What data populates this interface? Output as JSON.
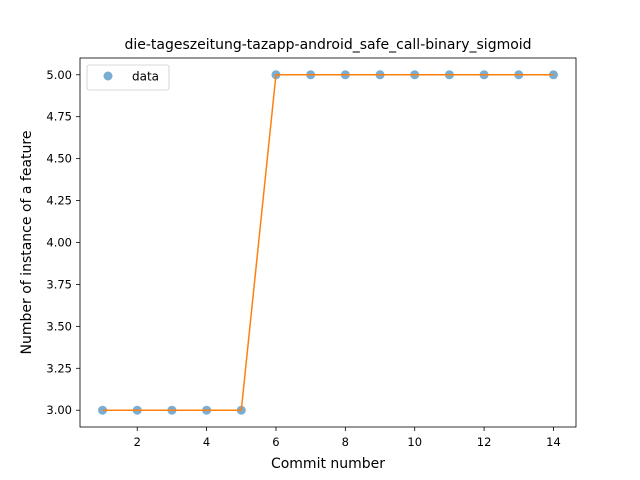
{
  "chart_data": {
    "type": "line",
    "title": "die-tageszeitung-tazapp-android_safe_call-binary_sigmoid",
    "xlabel": "Commit number",
    "ylabel": "Number of instance of a feature",
    "xlim": [
      0.35,
      14.65
    ],
    "ylim": [
      2.9,
      5.1
    ],
    "xticks": [
      2,
      4,
      6,
      8,
      10,
      12,
      14
    ],
    "yticks": [
      "3.00",
      "3.25",
      "3.50",
      "3.75",
      "4.00",
      "4.25",
      "4.50",
      "4.75",
      "5.00"
    ],
    "x": [
      1,
      2,
      3,
      4,
      5,
      6,
      7,
      8,
      9,
      10,
      11,
      12,
      13,
      14
    ],
    "series": [
      {
        "name": "data",
        "kind": "scatter",
        "color": "#1f77b4",
        "values": [
          3,
          3,
          3,
          3,
          3,
          5,
          5,
          5,
          5,
          5,
          5,
          5,
          5,
          5
        ]
      },
      {
        "kind": "line",
        "color": "#ff7f0e",
        "values": [
          3,
          3,
          3,
          3,
          3,
          5,
          5,
          5,
          5,
          5,
          5,
          5,
          5,
          5
        ]
      }
    ],
    "legend": {
      "position": "top-left"
    },
    "grid": false
  }
}
